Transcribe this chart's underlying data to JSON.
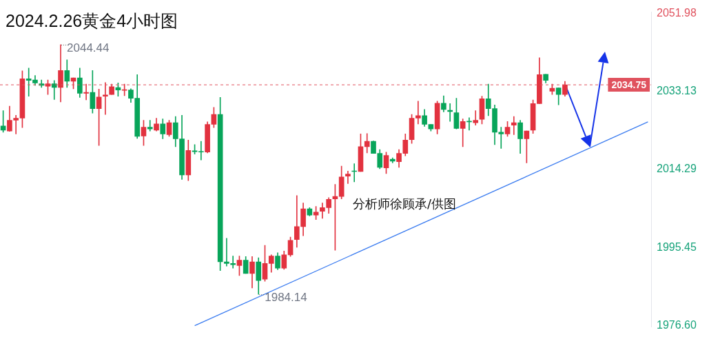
{
  "chart_data": {
    "type": "candlestick",
    "title": "2024.2.26黄金4小时图",
    "categories": [
      null,
      null,
      null,
      null,
      null,
      null,
      null,
      null,
      null,
      null,
      null,
      null,
      null,
      null,
      null,
      null,
      null,
      null,
      null,
      null,
      null,
      null,
      null,
      null,
      null,
      null,
      null,
      null,
      null,
      null,
      null,
      null,
      null,
      null,
      null,
      null,
      null,
      null,
      null,
      null,
      null,
      null,
      null,
      null,
      null,
      null,
      null,
      null,
      null,
      null,
      null,
      null,
      null,
      null,
      null,
      null,
      null,
      null,
      null,
      null,
      null,
      null,
      null,
      null,
      null,
      null,
      null,
      null,
      null,
      null,
      null,
      null,
      null,
      null,
      null,
      null,
      null,
      null,
      null,
      null,
      null,
      null,
      null,
      null,
      null,
      null,
      null,
      null,
      null,
      null,
      null,
      null,
      null,
      null,
      null,
      null,
      null,
      null,
      null,
      null,
      null,
      null
    ],
    "ohlc": [
      [
        2024.8,
        2028.5,
        2023.3,
        2023.8
      ],
      [
        2023.6,
        2029.6,
        2023.5,
        2026.2
      ],
      [
        2026.2,
        2027.4,
        2022.9,
        2026.7
      ],
      [
        2026.7,
        2038.1,
        2024.4,
        2036.2
      ],
      [
        2036.2,
        2038.8,
        2032.0,
        2035.8
      ],
      [
        2035.9,
        2037.0,
        2034.6,
        2035.2
      ],
      [
        2035.0,
        2035.9,
        2034.1,
        2034.6
      ],
      [
        2034.4,
        2035.9,
        2032.4,
        2035.0
      ],
      [
        2035.0,
        2035.8,
        2031.2,
        2034.1
      ],
      [
        2034.1,
        2044.44,
        2030.6,
        2038.2
      ],
      [
        2038.2,
        2040.8,
        2034.1,
        2035.6
      ],
      [
        2035.6,
        2036.4,
        2033.8,
        2036.4
      ],
      [
        2036.4,
        2038.8,
        2031.7,
        2032.7
      ],
      [
        2032.7,
        2034.9,
        2031.1,
        2032.9
      ],
      [
        2032.9,
        2038.2,
        2027.9,
        2029.0
      ],
      [
        2029.0,
        2033.7,
        2020.1,
        2031.8
      ],
      [
        2032.0,
        2035.3,
        2027.6,
        2032.3
      ],
      [
        2032.4,
        2034.9,
        2032.4,
        2034.3
      ],
      [
        2034.1,
        2035.2,
        2032.0,
        2033.5
      ],
      [
        2033.4,
        2034.9,
        2032.1,
        2033.5
      ],
      [
        2033.5,
        2033.8,
        2030.5,
        2031.5
      ],
      [
        2031.5,
        2037.2,
        2021.8,
        2022.3
      ],
      [
        2022.4,
        2026.2,
        2020.1,
        2024.5
      ],
      [
        2024.5,
        2026.2,
        2023.6,
        2024.1
      ],
      [
        2023.8,
        2026.7,
        2023.6,
        2025.3
      ],
      [
        2025.3,
        2026.5,
        2021.7,
        2022.9
      ],
      [
        2022.7,
        2026.2,
        2022.3,
        2025.6
      ],
      [
        2025.6,
        2027.1,
        2019.8,
        2021.7
      ],
      [
        2021.7,
        2027.4,
        2011.9,
        2013.0
      ],
      [
        2013.0,
        2021.4,
        2011.6,
        2018.9
      ],
      [
        2018.8,
        2020.3,
        2018.0,
        2018.6
      ],
      [
        2018.6,
        2021.1,
        2016.6,
        2018.5
      ],
      [
        2018.5,
        2025.8,
        2018.3,
        2025.2
      ],
      [
        2025.2,
        2029.3,
        2024.4,
        2027.6
      ],
      [
        2027.6,
        2031.7,
        1989.9,
        1992.0
      ],
      [
        1992.0,
        1997.7,
        1991.0,
        1991.6
      ],
      [
        1991.6,
        1993.4,
        1990.5,
        1991.3
      ],
      [
        1991.1,
        1993.4,
        1988.7,
        1992.4
      ],
      [
        1992.4,
        1993.3,
        1989.2,
        1989.2
      ],
      [
        1989.2,
        1993.3,
        1985.7,
        1992.0
      ],
      [
        1992.0,
        1993.0,
        1984.14,
        1987.5
      ],
      [
        1987.8,
        1996.0,
        1987.3,
        1991.6
      ],
      [
        1991.6,
        1993.7,
        1989.5,
        1993.4
      ],
      [
        1993.4,
        1994.2,
        1990.1,
        1990.5
      ],
      [
        1990.5,
        1994.6,
        1990.2,
        1993.7
      ],
      [
        1993.7,
        1998.0,
        1993.3,
        1997.2
      ],
      [
        1997.4,
        2008.0,
        1995.5,
        2000.5
      ],
      [
        2000.5,
        2006.2,
        1998.3,
        2004.8
      ],
      [
        2004.8,
        2005.1,
        2003.1,
        2003.3
      ],
      [
        2003.3,
        2005.4,
        2002.2,
        2004.0
      ],
      [
        2004.2,
        2006.2,
        2002.5,
        2005.1
      ],
      [
        2005.1,
        2007.5,
        2003.7,
        2007.1
      ],
      [
        2007.2,
        2010.7,
        1994.8,
        2007.8
      ],
      [
        2007.8,
        2015.1,
        2007.2,
        2012.5
      ],
      [
        2012.7,
        2013.9,
        2010.9,
        2013.2
      ],
      [
        2013.9,
        2015.7,
        2011.3,
        2013.8
      ],
      [
        2013.8,
        2022.9,
        2013.8,
        2019.8
      ],
      [
        2019.8,
        2023.0,
        2018.3,
        2021.1
      ],
      [
        2021.1,
        2021.2,
        2018.2,
        2018.2
      ],
      [
        2018.2,
        2019.1,
        2014.5,
        2014.8
      ],
      [
        2014.7,
        2018.5,
        2013.3,
        2017.7
      ],
      [
        2016.8,
        2017.1,
        2015.9,
        2016.3
      ],
      [
        2016.2,
        2019.1,
        2014.8,
        2018.2
      ],
      [
        2018.2,
        2022.9,
        2017.6,
        2021.4
      ],
      [
        2021.5,
        2027.6,
        2020.6,
        2026.7
      ],
      [
        2026.7,
        2030.8,
        2025.3,
        2027.3
      ],
      [
        2027.3,
        2028.8,
        2024.7,
        2025.2
      ],
      [
        2025.2,
        2025.2,
        2023.6,
        2024.1
      ],
      [
        2024.1,
        2030.8,
        2022.9,
        2030.3
      ],
      [
        2030.3,
        2032.1,
        2028.2,
        2028.8
      ],
      [
        2028.6,
        2030.2,
        2025.9,
        2028.3
      ],
      [
        2028.0,
        2031.5,
        2024.1,
        2024.2
      ],
      [
        2024.2,
        2026.5,
        2019.8,
        2025.9
      ],
      [
        2025.9,
        2026.8,
        2023.8,
        2025.8
      ],
      [
        2025.6,
        2028.5,
        2025.0,
        2026.2
      ],
      [
        2026.4,
        2032.0,
        2025.3,
        2031.4
      ],
      [
        2031.4,
        2034.9,
        2027.3,
        2029.0
      ],
      [
        2029.0,
        2029.9,
        2020.3,
        2023.3
      ],
      [
        2023.3,
        2024.5,
        2019.4,
        2022.9
      ],
      [
        2022.9,
        2025.9,
        2022.3,
        2024.5
      ],
      [
        2025.0,
        2027.1,
        2022.7,
        2025.6
      ],
      [
        2025.6,
        2026.2,
        2018.2,
        2021.7
      ],
      [
        2021.7,
        2023.6,
        2015.9,
        2023.6
      ],
      [
        2023.8,
        2031.1,
        2023.0,
        2030.2
      ],
      [
        2030.2,
        2041.3,
        2030.2,
        2037.2
      ],
      [
        2037.3,
        2037.3,
        2035.2,
        2035.8
      ],
      [
        2033.2,
        2034.9,
        2032.4,
        2033.9
      ],
      [
        2034.0,
        2034.0,
        2029.9,
        2032.4
      ],
      [
        2032.4,
        2035.6,
        2032.0,
        2034.75
      ],
      null,
      null,
      null,
      null,
      null,
      null,
      null,
      null,
      null,
      null,
      null,
      null,
      null
    ],
    "series": [
      {
        "type": "line",
        "color": "#3b7cf0",
        "values": [
          null,
          null,
          null,
          null,
          null,
          null,
          null,
          null,
          null,
          null,
          null,
          null,
          null,
          null,
          null,
          null,
          null,
          null,
          null,
          null,
          null,
          null,
          null,
          null,
          null,
          null,
          null,
          null,
          null,
          null,
          1976.6,
          null,
          null,
          null,
          null,
          null,
          null,
          null,
          null,
          null,
          null,
          null,
          null,
          null,
          null,
          null,
          null,
          null,
          null,
          null,
          null,
          null,
          null,
          null,
          null,
          null,
          null,
          null,
          null,
          null,
          null,
          null,
          null,
          null,
          null,
          null,
          null,
          null,
          null,
          null,
          null,
          null,
          null,
          null,
          null,
          null,
          null,
          null,
          null,
          null,
          null,
          null,
          null,
          null,
          null,
          null,
          null,
          null,
          null,
          null,
          null,
          null,
          null,
          null,
          null,
          null,
          null,
          null,
          null,
          null,
          null,
          2025.8
        ]
      }
    ],
    "ylim": [
      1976.3,
      2052.3
    ],
    "yticks": [
      {
        "value": 1976.6,
        "label": "1976.60"
      },
      1995.45,
      2014.29,
      2033.13,
      2051.98
    ],
    "ref_lines": [
      {
        "axis": "y",
        "value": 2034.75,
        "label": "2034.75",
        "color": "#e0525e",
        "line_style": "dashed"
      }
    ],
    "annotations": [
      "2044.44",
      "1984.14",
      "分析师徐顾承/供图"
    ],
    "grid": false,
    "legend": false
  }
}
